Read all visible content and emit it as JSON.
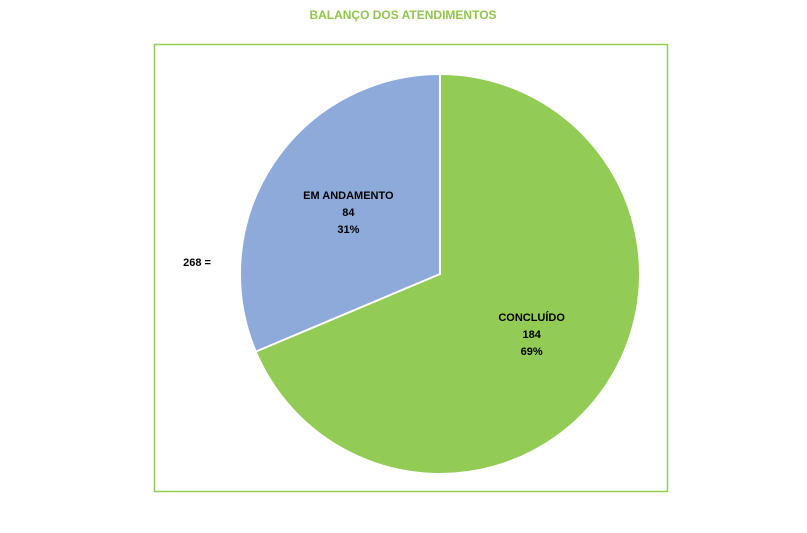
{
  "chart_data": {
    "type": "pie",
    "title": "BALANÇO DOS ATENDIMENTOS",
    "categories": [
      "CONCLUÍDO",
      "EM ANDAMENTO"
    ],
    "values": [
      184,
      84
    ],
    "percent_labels": [
      "69%",
      "31%"
    ],
    "colors": [
      "#92cc54",
      "#8eaadb"
    ],
    "annotation": "268 ="
  }
}
